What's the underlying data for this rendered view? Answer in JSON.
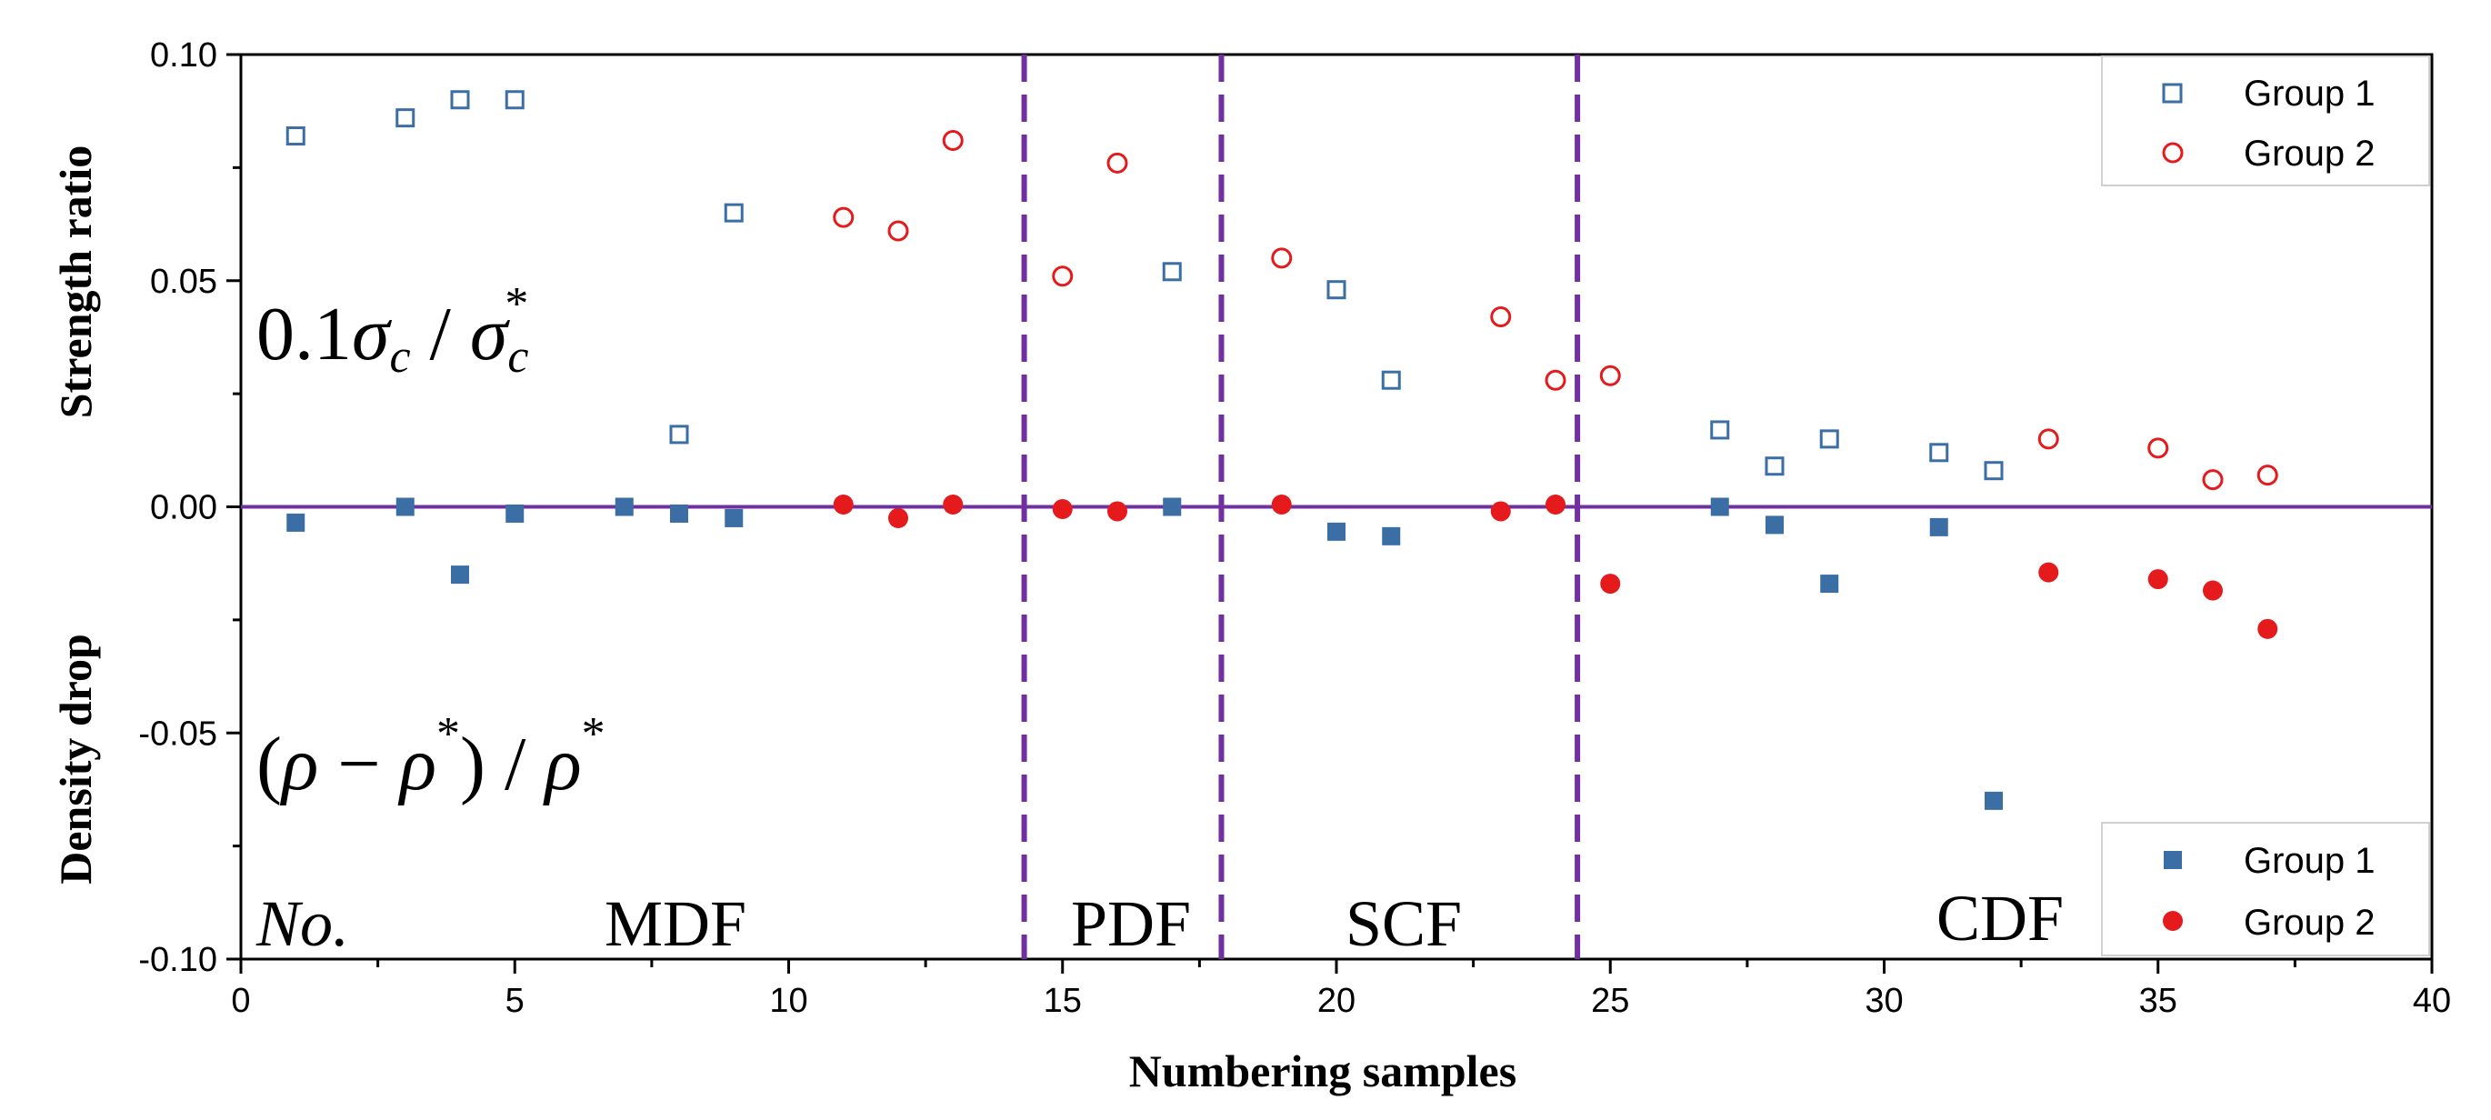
{
  "chart_data": {
    "type": "scatter",
    "xlabel": "Numbering samples",
    "ylabel_upper": "Strength ratio",
    "ylabel_lower": "Density drop",
    "xlim": [
      0,
      40
    ],
    "ylim": [
      -0.1,
      0.1
    ],
    "x_ticks": [
      "0",
      "5",
      "10",
      "15",
      "20",
      "25",
      "30",
      "35",
      "40"
    ],
    "y_ticks": [
      "-0.10",
      "-0.05",
      "0.00",
      "0.05",
      "0.10"
    ],
    "zero_line_color": "#7030a0",
    "divider_color": "#7030a0",
    "dividers_x": [
      14.3,
      17.9,
      24.4
    ],
    "regions": [
      {
        "label": "MDF",
        "x_center": 8.0
      },
      {
        "label": "PDF",
        "x_center": 16.1
      },
      {
        "label": "SCF",
        "x_center": 21.1
      },
      {
        "label": "CDF",
        "x_center": 32.2
      }
    ],
    "annotations": {
      "no_label": "No.",
      "strength_formula": {
        "coef": "0.1",
        "sigma": "σ",
        "sub": "c",
        "slash": " / ",
        "star": "*"
      },
      "density_formula": {
        "open": "(",
        "rho": "ρ",
        "minus": " − ",
        "star": "*",
        "close": ")",
        "slash": " / "
      }
    },
    "series": [
      {
        "name": "Group 1",
        "kind": "strength",
        "marker": "open-square",
        "color": "#3a6ea5",
        "points": [
          [
            1,
            0.082
          ],
          [
            3,
            0.086
          ],
          [
            4,
            0.09
          ],
          [
            5,
            0.09
          ],
          [
            8,
            0.016
          ],
          [
            9,
            0.065
          ],
          [
            17,
            0.052
          ],
          [
            20,
            0.048
          ],
          [
            21,
            0.028
          ],
          [
            27,
            0.017
          ],
          [
            28,
            0.009
          ],
          [
            29,
            0.015
          ],
          [
            31,
            0.012
          ],
          [
            32,
            0.008
          ]
        ]
      },
      {
        "name": "Group 2",
        "kind": "strength",
        "marker": "open-circle",
        "color": "#e41a1c",
        "points": [
          [
            11,
            0.064
          ],
          [
            12,
            0.061
          ],
          [
            13,
            0.081
          ],
          [
            15,
            0.051
          ],
          [
            16,
            0.076
          ],
          [
            19,
            0.055
          ],
          [
            23,
            0.042
          ],
          [
            24,
            0.028
          ],
          [
            25,
            0.029
          ],
          [
            33,
            0.015
          ],
          [
            35,
            0.013
          ],
          [
            36,
            0.006
          ],
          [
            37,
            0.007
          ]
        ]
      },
      {
        "name": "Group 1",
        "kind": "density",
        "marker": "filled-square",
        "color": "#3a6ea5",
        "points": [
          [
            1,
            -0.0035
          ],
          [
            3,
            0.0
          ],
          [
            4,
            -0.015
          ],
          [
            5,
            -0.0015
          ],
          [
            7,
            0.0
          ],
          [
            8,
            -0.0015
          ],
          [
            9,
            -0.0025
          ],
          [
            17,
            0.0
          ],
          [
            20,
            -0.0055
          ],
          [
            21,
            -0.0065
          ],
          [
            27,
            0.0
          ],
          [
            28,
            -0.004
          ],
          [
            29,
            -0.017
          ],
          [
            31,
            -0.0045
          ],
          [
            32,
            -0.065
          ]
        ]
      },
      {
        "name": "Group 2",
        "kind": "density",
        "marker": "filled-circle",
        "color": "#e41a1c",
        "points": [
          [
            11,
            0.0005
          ],
          [
            12,
            -0.0025
          ],
          [
            13,
            0.0005
          ],
          [
            15,
            -0.0005
          ],
          [
            16,
            -0.001
          ],
          [
            19,
            0.0005
          ],
          [
            23,
            -0.001
          ],
          [
            24,
            0.0005
          ],
          [
            25,
            -0.017
          ],
          [
            33,
            -0.0145
          ],
          [
            35,
            -0.016
          ],
          [
            36,
            -0.0185
          ],
          [
            37,
            -0.027
          ]
        ]
      }
    ],
    "legend_upper": [
      "Group 1",
      "Group 2"
    ],
    "legend_lower": [
      "Group 1",
      "Group 2"
    ]
  }
}
